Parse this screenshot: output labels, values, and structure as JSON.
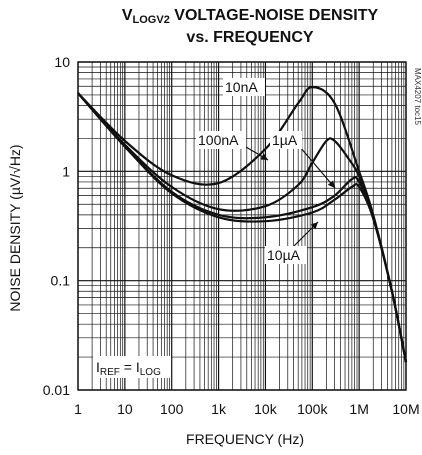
{
  "chart_data": {
    "type": "line",
    "title": "VLOGV2 VOLTAGE-NOISE DENSITY",
    "title_parts": {
      "v": "V",
      "sub": "LOGV2",
      "rest": " VOLTAGE-NOISE DENSITY"
    },
    "subtitle": "vs. FREQUENCY",
    "xlabel": "FREQUENCY (Hz)",
    "ylabel": "NOISE DENSITY (µV/√Hz)",
    "x_scale": "log",
    "y_scale": "log",
    "xlim": [
      1,
      10000000
    ],
    "ylim": [
      0.01,
      10
    ],
    "x_ticks": [
      {
        "v": 1,
        "label": "1"
      },
      {
        "v": 10,
        "label": "10"
      },
      {
        "v": 100,
        "label": "100"
      },
      {
        "v": 1000,
        "label": "1k"
      },
      {
        "v": 10000,
        "label": "10k"
      },
      {
        "v": 100000,
        "label": "100k"
      },
      {
        "v": 1000000,
        "label": "1M"
      },
      {
        "v": 10000000,
        "label": "10M"
      }
    ],
    "y_ticks": [
      {
        "v": 10,
        "label": "10"
      },
      {
        "v": 1,
        "label": "1"
      },
      {
        "v": 0.1,
        "label": "0.1"
      },
      {
        "v": 0.01,
        "label": "0.01"
      }
    ],
    "grid": true,
    "series": [
      {
        "name": "10nA",
        "points": [
          [
            1,
            5.2
          ],
          [
            10,
            1.9
          ],
          [
            100,
            0.92
          ],
          [
            1000,
            0.78
          ],
          [
            10000,
            1.6
          ],
          [
            50000,
            4.2
          ],
          [
            100000,
            5.9
          ],
          [
            300000,
            4.2
          ],
          [
            1000000,
            1.0
          ],
          [
            2000000,
            0.4
          ],
          [
            5000000,
            0.08
          ],
          [
            10000000,
            0.018
          ]
        ]
      },
      {
        "name": "100nA",
        "points": [
          [
            1,
            5.2
          ],
          [
            10,
            1.75
          ],
          [
            100,
            0.72
          ],
          [
            1000,
            0.45
          ],
          [
            10000,
            0.48
          ],
          [
            50000,
            0.75
          ],
          [
            100000,
            1.2
          ],
          [
            200000,
            1.9
          ],
          [
            300000,
            1.9
          ],
          [
            600000,
            1.3
          ],
          [
            1000000,
            0.9
          ],
          [
            2000000,
            0.38
          ],
          [
            5000000,
            0.08
          ],
          [
            10000000,
            0.018
          ]
        ]
      },
      {
        "name": "1µA",
        "points": [
          [
            1,
            5.2
          ],
          [
            10,
            1.7
          ],
          [
            100,
            0.65
          ],
          [
            1000,
            0.4
          ],
          [
            10000,
            0.38
          ],
          [
            100000,
            0.47
          ],
          [
            300000,
            0.6
          ],
          [
            700000,
            0.85
          ],
          [
            1000000,
            0.8
          ],
          [
            2000000,
            0.38
          ],
          [
            5000000,
            0.08
          ],
          [
            10000000,
            0.018
          ]
        ]
      },
      {
        "name": "10µA",
        "points": [
          [
            1,
            5.2
          ],
          [
            10,
            1.68
          ],
          [
            100,
            0.63
          ],
          [
            1000,
            0.38
          ],
          [
            10000,
            0.35
          ],
          [
            100000,
            0.42
          ],
          [
            300000,
            0.55
          ],
          [
            700000,
            0.72
          ],
          [
            1000000,
            0.72
          ],
          [
            2000000,
            0.37
          ],
          [
            5000000,
            0.08
          ],
          [
            10000000,
            0.018
          ]
        ]
      }
    ],
    "labels": [
      {
        "key": "10nA",
        "text": "10nA"
      },
      {
        "key": "100nA",
        "text": "100nA"
      },
      {
        "key": "1uA",
        "text": "1µA"
      },
      {
        "key": "10uA",
        "text": "10µA"
      }
    ],
    "annotation": {
      "i": "I",
      "ref": "REF",
      "eq": " = I",
      "log": "LOG"
    },
    "watermark": "MAX4207 toc15",
    "line_color": "#111111",
    "grid_color": "#111111",
    "background": "#ffffff"
  }
}
